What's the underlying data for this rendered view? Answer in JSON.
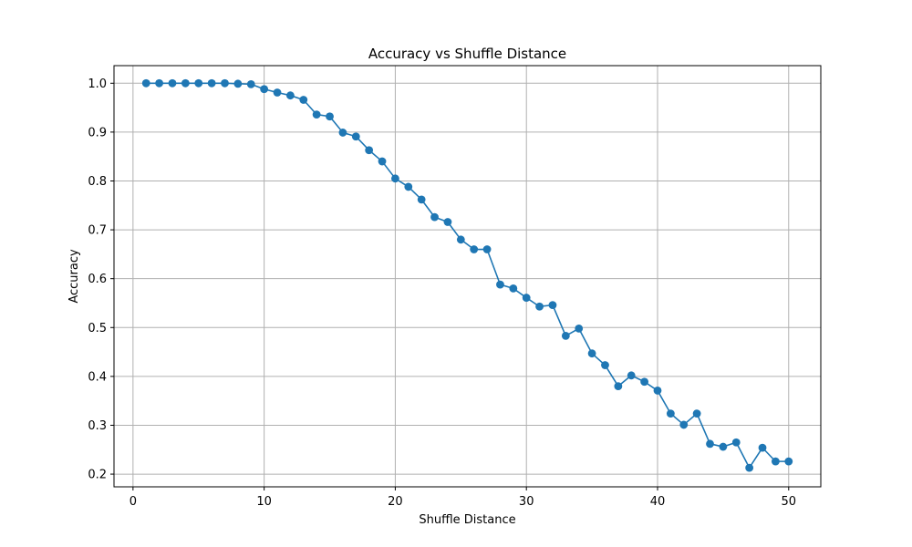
{
  "chart_data": {
    "type": "line",
    "title": "Accuracy vs Shuffle Distance",
    "xlabel": "Shuffle Distance",
    "ylabel": "Accuracy",
    "xlim": [
      -1.45,
      52.45
    ],
    "ylim": [
      0.174,
      1.036
    ],
    "xticks": [
      0,
      10,
      20,
      30,
      40,
      50
    ],
    "yticks": [
      0.2,
      0.3,
      0.4,
      0.5,
      0.6,
      0.7,
      0.8,
      0.9,
      1.0
    ],
    "ytick_labels": [
      "0.2",
      "0.3",
      "0.4",
      "0.5",
      "0.6",
      "0.7",
      "0.8",
      "0.9",
      "1.0"
    ],
    "grid": true,
    "marker": "circle",
    "colors": {
      "line": "#1f77b4",
      "grid": "#b0b0b0",
      "axes": "#000000"
    },
    "x": [
      1,
      2,
      3,
      4,
      5,
      6,
      7,
      8,
      9,
      10,
      11,
      12,
      13,
      14,
      15,
      16,
      17,
      18,
      19,
      20,
      21,
      22,
      23,
      24,
      25,
      26,
      27,
      28,
      29,
      30,
      31,
      32,
      33,
      34,
      35,
      36,
      37,
      38,
      39,
      40,
      41,
      42,
      43,
      44,
      45,
      46,
      47,
      48,
      49,
      50
    ],
    "series": [
      {
        "values": [
          1.0,
          1.0,
          1.0,
          1.0,
          1.0,
          1.0,
          1.0,
          0.999,
          0.998,
          0.988,
          0.981,
          0.975,
          0.966,
          0.936,
          0.932,
          0.899,
          0.891,
          0.863,
          0.84,
          0.805,
          0.788,
          0.762,
          0.726,
          0.716,
          0.68,
          0.66,
          0.66,
          0.588,
          0.58,
          0.561,
          0.543,
          0.546,
          0.483,
          0.498,
          0.447,
          0.423,
          0.38,
          0.402,
          0.389,
          0.371,
          0.324,
          0.301,
          0.324,
          0.262,
          0.256,
          0.265,
          0.213,
          0.254,
          0.226,
          0.226
        ]
      }
    ]
  }
}
